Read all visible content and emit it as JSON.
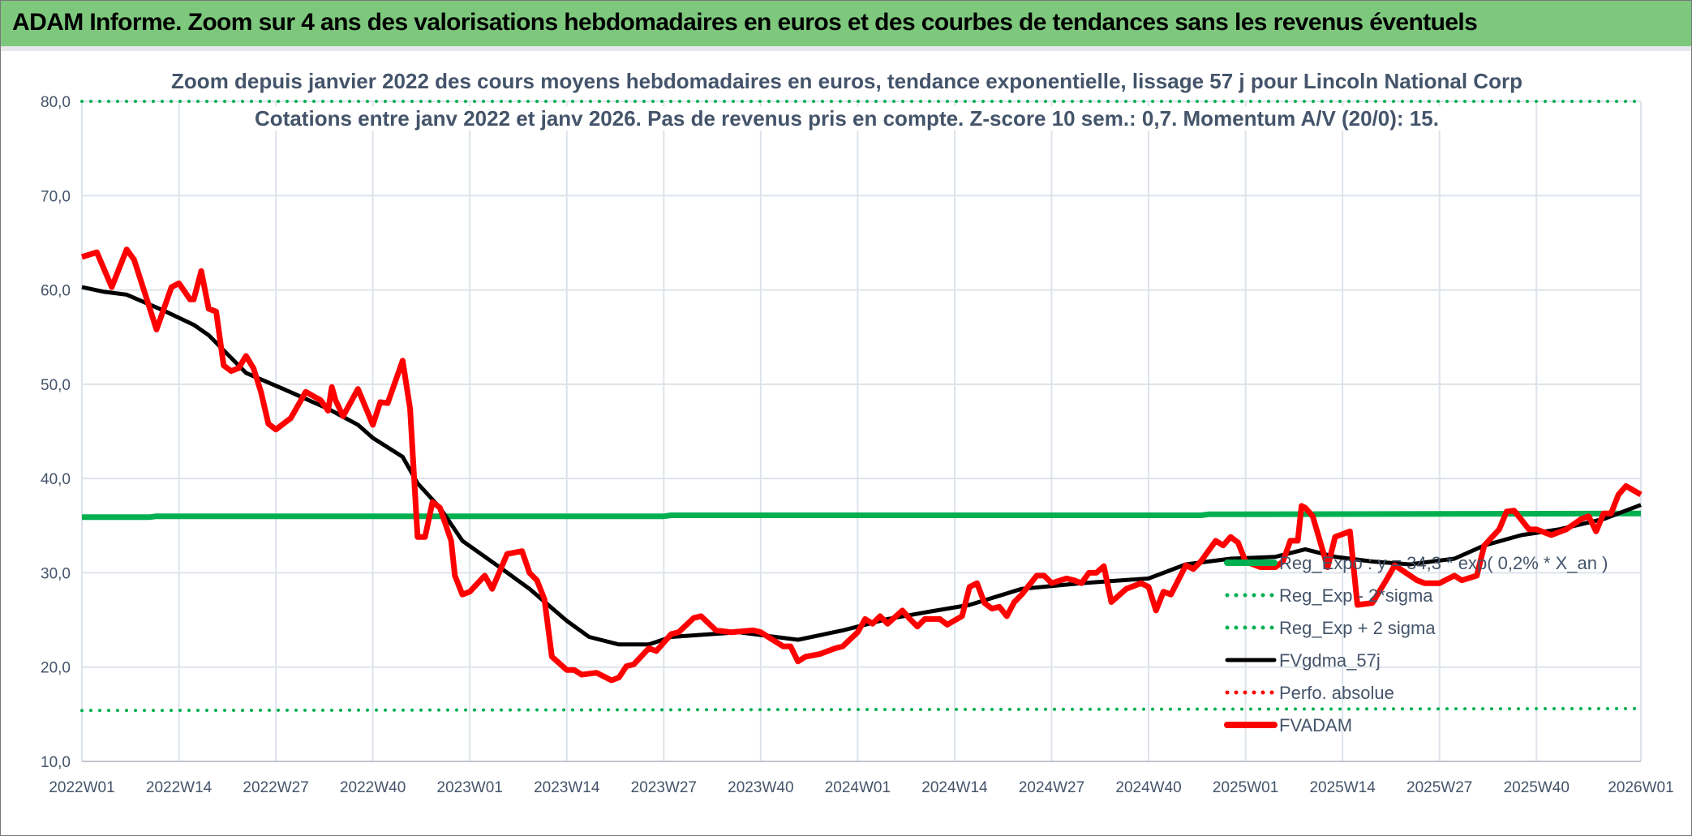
{
  "title": "ADAM Informe. Zoom sur 4 ans des valorisations hebdomadaires en euros et des courbes de tendances sans les revenus éventuels",
  "chart_data": {
    "type": "line",
    "title": "Zoom depuis janvier 2022 des cours moyens hebdomadaires en euros, tendance exponentielle, lissage 57 j pour Lincoln National Corp",
    "subtitle": "Cotations entre janv 2022 et janv 2026. Pas de revenus pris en compte. Z-score 10 sem.: 0,7. Momentum A/V (20/0): 15.",
    "xlabel": "",
    "ylabel": "",
    "x_unit": "weeks since 2022W01",
    "xlim": [
      0,
      209
    ],
    "ylim": [
      10,
      80
    ],
    "y_ticks": [
      "10,0",
      "20,0",
      "30,0",
      "40,0",
      "50,0",
      "60,0",
      "70,0",
      "80,0"
    ],
    "y_tick_values": [
      10,
      20,
      30,
      40,
      50,
      60,
      70,
      80
    ],
    "x_ticks": [
      "2022W01",
      "2022W14",
      "2022W27",
      "2022W40",
      "2023W01",
      "2023W14",
      "2023W27",
      "2023W40",
      "2024W01",
      "2024W14",
      "2024W27",
      "2024W40",
      "2025W01",
      "2025W14",
      "2025W27",
      "2025W40",
      "2026W01"
    ],
    "x_tick_values": [
      0,
      13,
      26,
      39,
      52,
      65,
      78,
      91,
      104,
      117,
      130,
      143,
      156,
      169,
      182,
      195,
      209
    ],
    "grid": true,
    "legend_position": "bottom-right",
    "colors": {
      "reg": "#00b050",
      "sigma": "#00b050",
      "ma": "#000000",
      "perfo": "#ff0000",
      "price": "#ff0000",
      "grid": "#dde3ea",
      "text": "#44546a",
      "titlebar": "#7dc87d"
    },
    "series": [
      {
        "name": "Reg_Expo : y = 34,3 * exp( 0,2% * X_an )",
        "key": "reg",
        "style": "solid",
        "points": [
          [
            0,
            35.9
          ],
          [
            9,
            35.9
          ],
          [
            10,
            36.0
          ],
          [
            78,
            36.0
          ],
          [
            79,
            36.1
          ],
          [
            150,
            36.1
          ],
          [
            151,
            36.2
          ],
          [
            209,
            36.3
          ]
        ]
      },
      {
        "name": "Reg_Exp - 2*sigma",
        "key": "sigma",
        "style": "dotted",
        "points": [
          [
            0,
            15.4
          ],
          [
            209,
            15.6
          ]
        ]
      },
      {
        "name": "Reg_Exp + 2 sigma",
        "key": "sigma",
        "style": "dotted",
        "points": [
          [
            0,
            80
          ],
          [
            209,
            80
          ]
        ]
      },
      {
        "name": "FVgdma_57j",
        "key": "ma",
        "style": "solid",
        "points": [
          [
            0,
            60.3
          ],
          [
            3,
            59.8
          ],
          [
            6,
            59.5
          ],
          [
            11,
            57.8
          ],
          [
            15,
            56.3
          ],
          [
            17,
            55.2
          ],
          [
            22,
            51.2
          ],
          [
            27,
            49.5
          ],
          [
            33,
            47.4
          ],
          [
            37,
            45.7
          ],
          [
            39,
            44.3
          ],
          [
            43,
            42.3
          ],
          [
            45,
            39.5
          ],
          [
            48,
            36.9
          ],
          [
            51,
            33.4
          ],
          [
            56,
            30.6
          ],
          [
            60,
            28.3
          ],
          [
            65,
            24.9
          ],
          [
            68,
            23.2
          ],
          [
            72,
            22.4
          ],
          [
            76,
            22.4
          ],
          [
            79,
            23.2
          ],
          [
            88,
            23.7
          ],
          [
            96,
            22.9
          ],
          [
            102,
            23.9
          ],
          [
            108,
            25.1
          ],
          [
            113,
            25.8
          ],
          [
            119,
            26.6
          ],
          [
            126,
            28.3
          ],
          [
            134,
            28.9
          ],
          [
            143,
            29.4
          ],
          [
            148,
            30.9
          ],
          [
            154,
            31.5
          ],
          [
            160,
            31.7
          ],
          [
            164,
            32.5
          ],
          [
            168,
            31.7
          ],
          [
            173,
            31.2
          ],
          [
            178,
            30.9
          ],
          [
            184,
            31.5
          ],
          [
            188,
            32.9
          ],
          [
            193,
            34.0
          ],
          [
            198,
            34.6
          ],
          [
            204,
            35.7
          ],
          [
            209,
            37.2
          ]
        ]
      },
      {
        "name": "Perfo. absolue",
        "key": "perfo",
        "style": "dotted",
        "points": []
      },
      {
        "name": "FVADAM",
        "key": "price",
        "style": "solid",
        "points": [
          [
            0,
            63.5
          ],
          [
            2,
            64.0
          ],
          [
            4,
            60.3
          ],
          [
            6,
            64.3
          ],
          [
            7,
            63.2
          ],
          [
            10,
            55.8
          ],
          [
            12,
            60.3
          ],
          [
            13,
            60.7
          ],
          [
            14.5,
            59.0
          ],
          [
            15,
            59.0
          ],
          [
            16,
            62.0
          ],
          [
            17,
            58.0
          ],
          [
            18,
            57.7
          ],
          [
            19,
            52.0
          ],
          [
            20,
            51.4
          ],
          [
            21,
            51.7
          ],
          [
            22,
            53.0
          ],
          [
            23,
            51.7
          ],
          [
            24,
            49.2
          ],
          [
            25,
            45.8
          ],
          [
            26,
            45.2
          ],
          [
            28,
            46.4
          ],
          [
            30,
            49.2
          ],
          [
            32,
            48.3
          ],
          [
            33,
            47.2
          ],
          [
            33.5,
            49.7
          ],
          [
            34,
            48.3
          ],
          [
            35,
            46.6
          ],
          [
            37,
            49.5
          ],
          [
            39,
            45.7
          ],
          [
            40,
            48.1
          ],
          [
            41,
            48.0
          ],
          [
            43,
            52.5
          ],
          [
            44,
            47.4
          ],
          [
            45,
            33.8
          ],
          [
            46,
            33.8
          ],
          [
            47,
            37.5
          ],
          [
            48,
            36.9
          ],
          [
            49.5,
            33.4
          ],
          [
            50,
            29.7
          ],
          [
            51,
            27.7
          ],
          [
            52,
            28.0
          ],
          [
            54,
            29.7
          ],
          [
            55,
            28.3
          ],
          [
            57,
            32.0
          ],
          [
            59,
            32.3
          ],
          [
            60,
            30.0
          ],
          [
            61,
            29.2
          ],
          [
            62,
            27.2
          ],
          [
            63,
            21.1
          ],
          [
            65,
            19.7
          ],
          [
            66,
            19.7
          ],
          [
            67,
            19.2
          ],
          [
            69,
            19.4
          ],
          [
            71,
            18.6
          ],
          [
            72,
            18.9
          ],
          [
            73,
            20.1
          ],
          [
            74,
            20.3
          ],
          [
            76,
            22.0
          ],
          [
            77,
            21.7
          ],
          [
            79,
            23.5
          ],
          [
            80,
            23.7
          ],
          [
            82,
            25.2
          ],
          [
            83,
            25.4
          ],
          [
            85,
            23.9
          ],
          [
            87,
            23.7
          ],
          [
            90,
            23.9
          ],
          [
            91,
            23.7
          ],
          [
            92,
            23.2
          ],
          [
            94,
            22.2
          ],
          [
            95,
            22.2
          ],
          [
            96,
            20.6
          ],
          [
            97,
            21.1
          ],
          [
            99,
            21.4
          ],
          [
            101,
            22.0
          ],
          [
            102,
            22.2
          ],
          [
            104,
            23.7
          ],
          [
            105,
            25.1
          ],
          [
            106,
            24.6
          ],
          [
            107,
            25.4
          ],
          [
            108,
            24.6
          ],
          [
            110,
            26.0
          ],
          [
            111,
            25.1
          ],
          [
            112,
            24.3
          ],
          [
            113,
            25.1
          ],
          [
            115,
            25.1
          ],
          [
            116,
            24.5
          ],
          [
            118,
            25.4
          ],
          [
            119,
            28.5
          ],
          [
            120,
            28.9
          ],
          [
            121,
            26.8
          ],
          [
            122,
            26.2
          ],
          [
            123,
            26.4
          ],
          [
            124,
            25.4
          ],
          [
            125,
            26.9
          ],
          [
            126,
            27.7
          ],
          [
            128,
            29.7
          ],
          [
            129,
            29.7
          ],
          [
            130,
            28.9
          ],
          [
            132,
            29.4
          ],
          [
            133,
            29.2
          ],
          [
            134,
            28.9
          ],
          [
            135,
            30.0
          ],
          [
            136,
            30.0
          ],
          [
            137,
            30.7
          ],
          [
            138,
            26.9
          ],
          [
            140,
            28.3
          ],
          [
            142,
            28.9
          ],
          [
            143,
            28.5
          ],
          [
            144,
            26.0
          ],
          [
            145,
            28.0
          ],
          [
            146,
            27.7
          ],
          [
            148,
            30.8
          ],
          [
            149,
            30.4
          ],
          [
            150,
            31.2
          ],
          [
            152,
            33.4
          ],
          [
            153,
            32.9
          ],
          [
            154,
            33.8
          ],
          [
            155,
            33.2
          ],
          [
            156,
            31.2
          ],
          [
            158,
            30.6
          ],
          [
            160,
            30.6
          ],
          [
            161,
            31.2
          ],
          [
            162,
            33.4
          ],
          [
            163,
            33.4
          ],
          [
            163.5,
            37.1
          ],
          [
            164,
            36.9
          ],
          [
            165,
            36.0
          ],
          [
            167,
            30.6
          ],
          [
            168,
            33.8
          ],
          [
            170,
            34.4
          ],
          [
            171,
            26.6
          ],
          [
            173,
            26.8
          ],
          [
            175,
            29.4
          ],
          [
            176,
            30.8
          ],
          [
            179,
            29.2
          ],
          [
            180,
            28.9
          ],
          [
            182,
            28.9
          ],
          [
            184,
            29.7
          ],
          [
            185,
            29.2
          ],
          [
            187,
            29.7
          ],
          [
            188,
            32.9
          ],
          [
            190,
            34.6
          ],
          [
            191,
            36.5
          ],
          [
            192,
            36.6
          ],
          [
            194,
            34.6
          ],
          [
            195,
            34.6
          ],
          [
            197,
            34.0
          ],
          [
            199,
            34.6
          ],
          [
            201,
            35.7
          ],
          [
            202,
            36.0
          ],
          [
            203,
            34.4
          ],
          [
            204,
            36.3
          ],
          [
            205,
            36.3
          ],
          [
            206,
            38.3
          ],
          [
            207,
            39.2
          ],
          [
            209,
            38.3
          ]
        ]
      }
    ]
  }
}
